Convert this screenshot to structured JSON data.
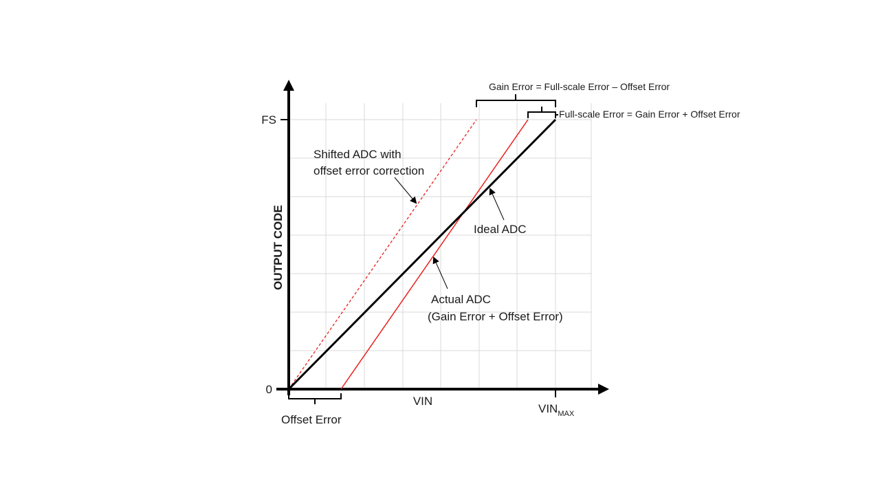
{
  "axes": {
    "y_label": "OUTPUT CODE",
    "x_label": "VIN",
    "y_tick_fs": "FS",
    "y_tick_zero": "0",
    "vin_max_main": "VIN",
    "vin_max_sub": "MAX"
  },
  "annotations": {
    "offset_error": "Offset Error",
    "gain_error_formula": "Gain Error = Full-scale Error – Offset Error",
    "full_scale_error_formula": "Full-scale Error = Gain Error + Offset Error",
    "shifted_line1": "Shifted ADC with",
    "shifted_line2": "offset error correction",
    "ideal": "Ideal ADC",
    "actual_line1": "Actual ADC",
    "actual_line2": "(Gain Error + Offset Error)"
  },
  "colors": {
    "ideal": "#000000",
    "actual": "#e8201a",
    "shifted": "#e8201a",
    "grid": "#d9d9d9"
  }
}
